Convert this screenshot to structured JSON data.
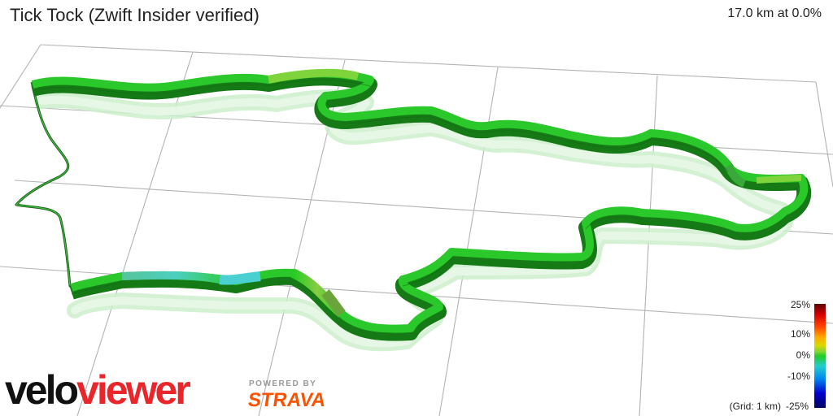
{
  "header": {
    "title": "Tick Tock (Zwift Insider verified)",
    "stats": "17.0 km at 0.0%"
  },
  "legend": {
    "labels": [
      "25%",
      "10%",
      "0%",
      "-10%",
      "-25%"
    ],
    "grid_note": "(Grid: 1 km)"
  },
  "branding": {
    "logo_part1": "velo",
    "logo_part2": "viewer",
    "powered_by": "POWERED BY",
    "strava": "STRAVA"
  },
  "colors": {
    "route_main": "#22cc22",
    "route_dark": "#159015",
    "shadow": "#c9efc9",
    "grid": "#b3b3b3",
    "brand_red": "#e8262b",
    "strava_orange": "#fc5200"
  }
}
